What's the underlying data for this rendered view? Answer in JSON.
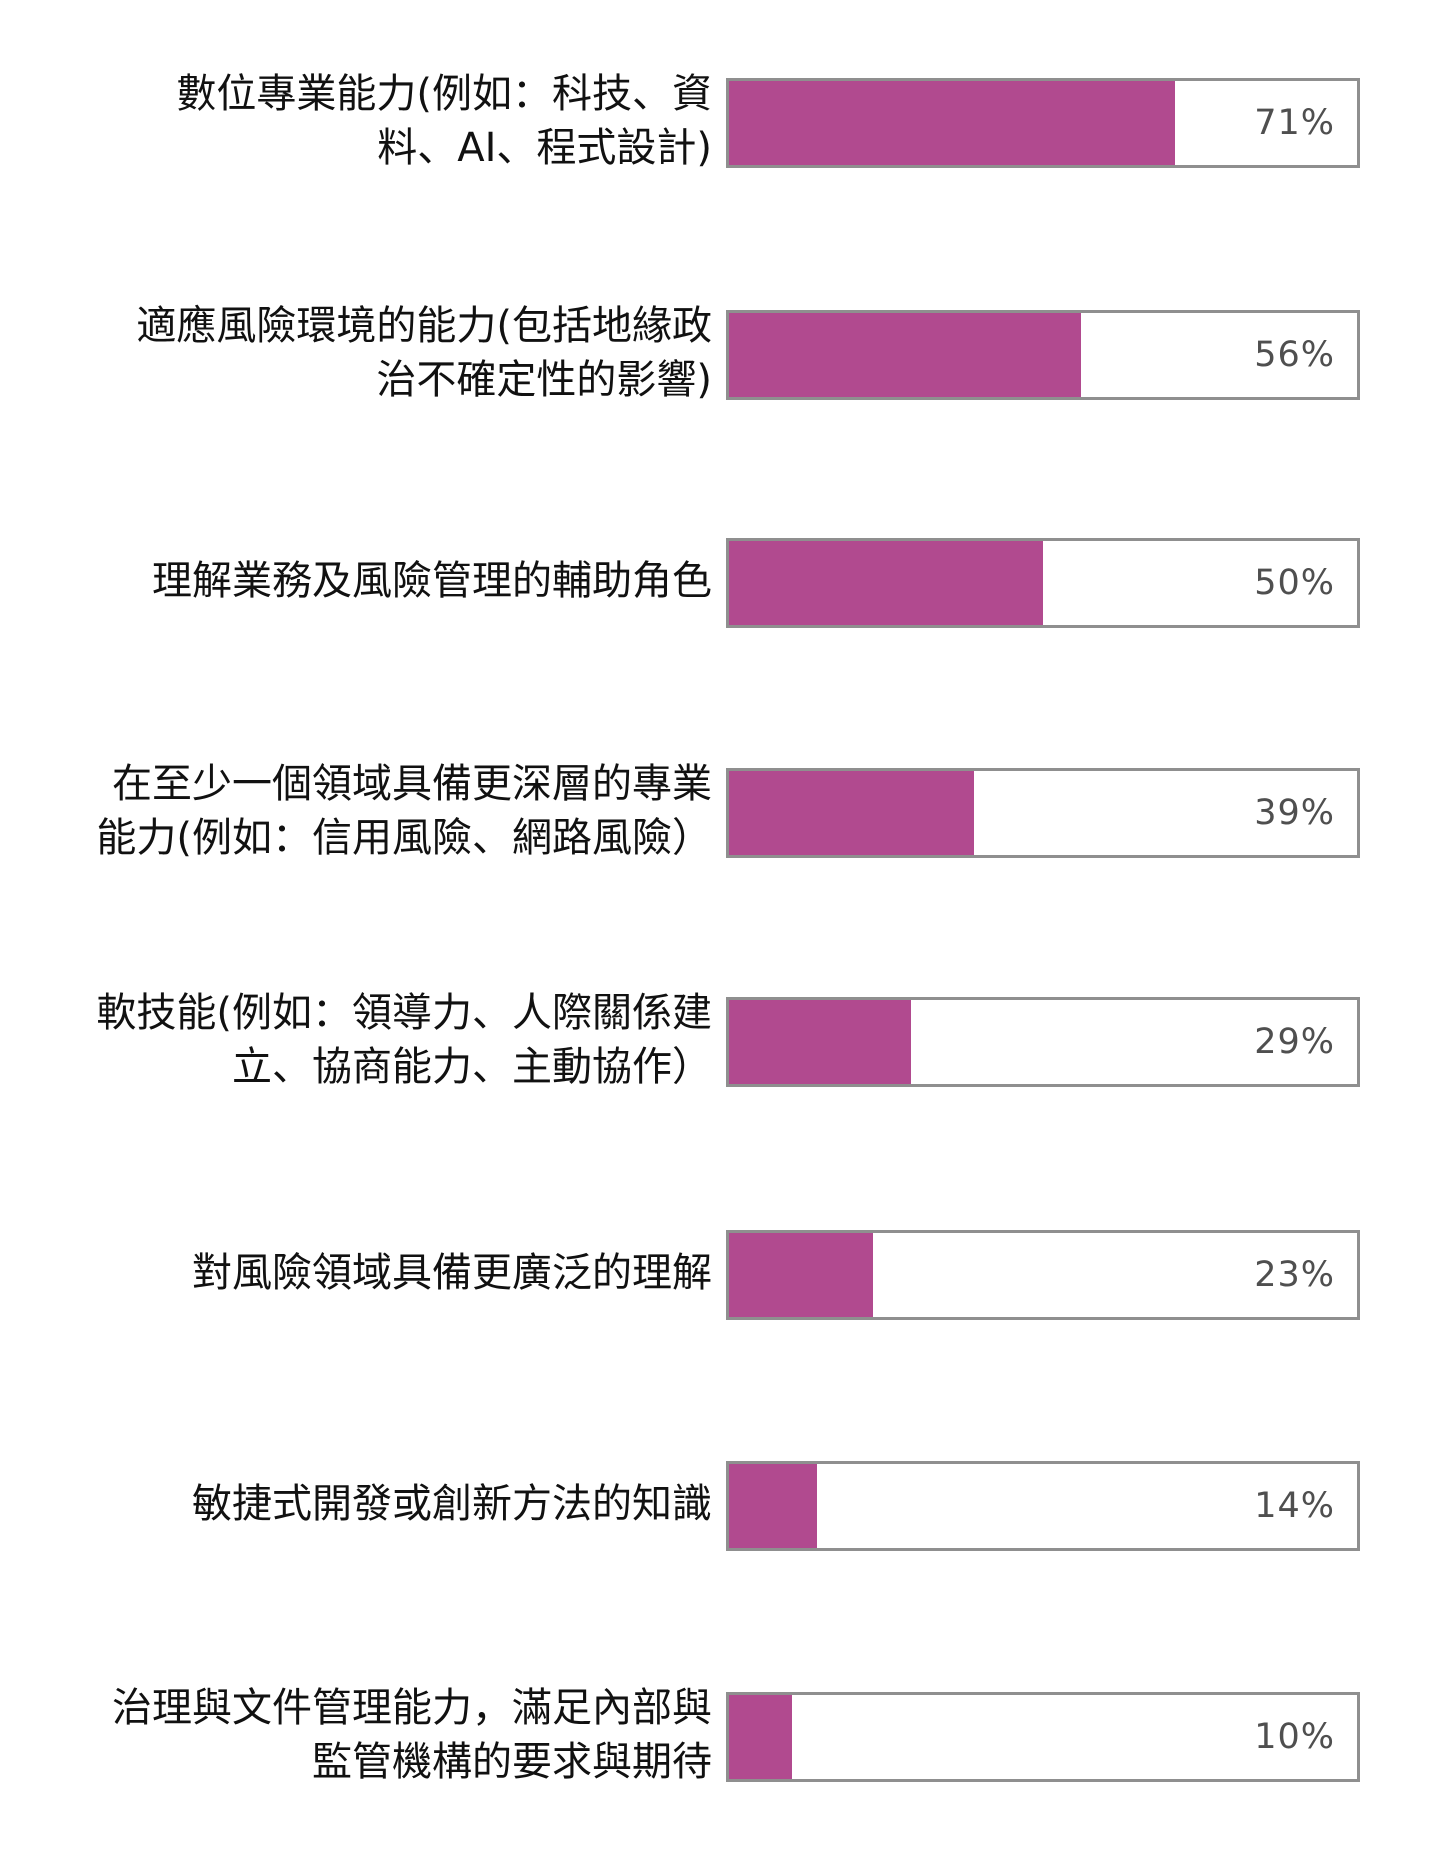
{
  "chart_data": {
    "type": "bar",
    "orientation": "horizontal",
    "xlim": [
      0,
      100
    ],
    "unit": "%",
    "bar_color": "#b14a8f",
    "frame_color": "#8f8f8f",
    "categories": [
      "數位專業能力(例如：科技、資料、AI、程式設計)",
      "適應風險環境的能力(包括地緣政治不確定性的影響)",
      "理解業務及風險管理的輔助角色",
      "在至少一個領域具備更深層的專業能力(例如：信用風險、網路風險）",
      "軟技能(例如：領導力、人際關係建立、協商能力、主動協作）",
      "對風險領域具備更廣泛的理解",
      "敏捷式開發或創新方法的知識",
      "治理與文件管理能力，滿足內部與監管機構的要求與期待"
    ],
    "values": [
      71,
      56,
      50,
      39,
      29,
      23,
      14,
      10
    ],
    "value_labels": [
      "71%",
      "56%",
      "50%",
      "39%",
      "29%",
      "23%",
      "14%",
      "10%"
    ],
    "label_lines": [
      [
        "數位專業能力(例如：科技、資",
        "料、AI、程式設計)"
      ],
      [
        "適應風險環境的能力(包括地緣政",
        "治不確定性的影響)"
      ],
      [
        "理解業務及風險管理的輔助角色"
      ],
      [
        "在至少一個領域具備更深層的專業",
        "能力(例如：信用風險、網路風險）"
      ],
      [
        "軟技能(例如：領導力、人際關係建",
        "立、協商能力、主動協作）"
      ],
      [
        "對風險領域具備更廣泛的理解"
      ],
      [
        "敏捷式開發或創新方法的知識"
      ],
      [
        "治理與文件管理能力，滿足內部與",
        "監管機構的要求與期待"
      ]
    ]
  }
}
